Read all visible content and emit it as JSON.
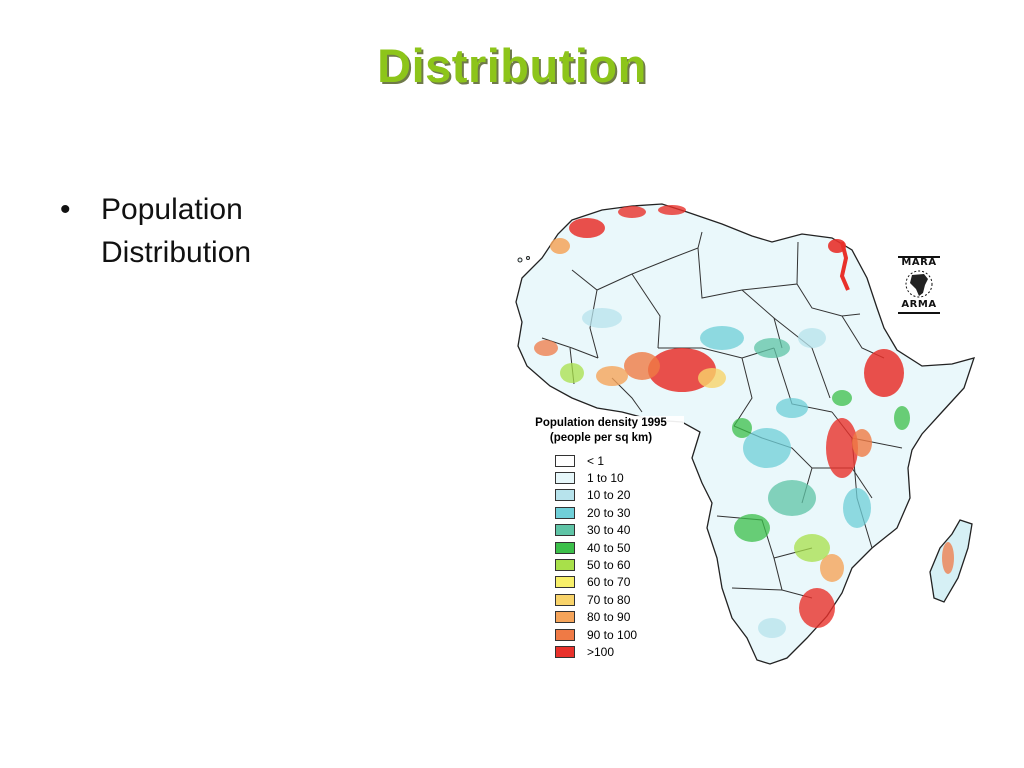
{
  "slide": {
    "title": "Distribution",
    "bullets": [
      {
        "text": "Population\nDistribution"
      }
    ]
  },
  "map": {
    "region": "Africa",
    "legend": {
      "title_line1": "Population density 1995",
      "title_line2": "(people per sq km)",
      "items": [
        {
          "label": "< 1",
          "color": "#ffffff"
        },
        {
          "label": "1 to 10",
          "color": "#e6f7fa"
        },
        {
          "label": "10 to 20",
          "color": "#b7e3ec"
        },
        {
          "label": "20 to 30",
          "color": "#6fcfd8"
        },
        {
          "label": "30 to 40",
          "color": "#5fc4a6"
        },
        {
          "label": "40 to 50",
          "color": "#3cbf4a"
        },
        {
          "label": "50 to 60",
          "color": "#a8e04a"
        },
        {
          "label": "60 to 70",
          "color": "#f7ef6a"
        },
        {
          "label": "70 to 80",
          "color": "#f8d36a"
        },
        {
          "label": "80 to 90",
          "color": "#f5a45a"
        },
        {
          "label": "90 to 100",
          "color": "#ef7a45"
        },
        {
          "label": ">100",
          "color": "#e8312b"
        }
      ]
    },
    "logo": {
      "top_text": "MARA",
      "bottom_text": "ARMA"
    }
  },
  "colors": {
    "title": "#8dc51a",
    "land": "#eaf8fb",
    "border": "#333333",
    "high_density": "#e8312b"
  }
}
